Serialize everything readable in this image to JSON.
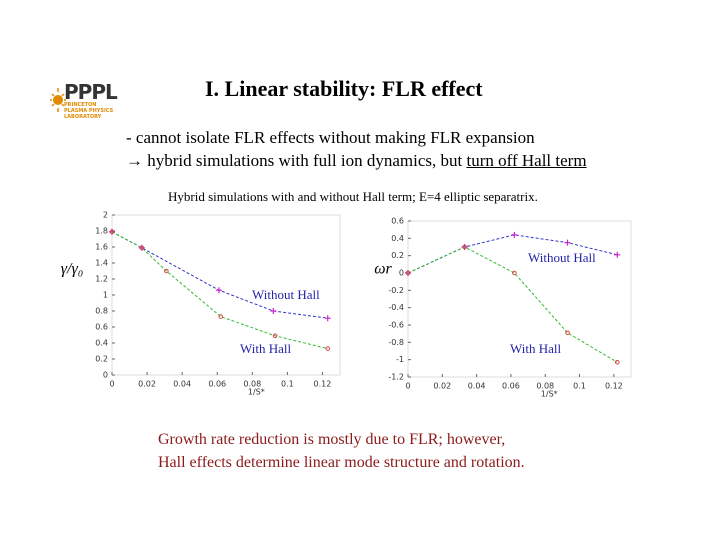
{
  "logo": {
    "text": "PPPL",
    "subtext": "PRINCETON PLASMA PHYSICS LABORATORY"
  },
  "title": "I.  Linear stability: FLR effect",
  "bullets": [
    "- cannot isolate FLR effects without making FLR expansion",
    "→  hybrid simulations with full ion dynamics, but ",
    "turn off Hall term"
  ],
  "caption": "Hybrid simulations with and without Hall term; E=4 elliptic separatrix.",
  "conclusion": [
    "Growth rate reduction is mostly due to FLR; however,",
    "Hall effects determine linear mode structure and rotation."
  ],
  "chart_data": [
    {
      "type": "line",
      "ylabel": "γ/γ₀",
      "xlabel": "1/S*",
      "xlim": [
        0,
        0.13
      ],
      "xticks": [
        0,
        0.02,
        0.04,
        0.06,
        0.08,
        0.1,
        0.12
      ],
      "ylim": [
        0,
        2
      ],
      "yticks": [
        0,
        0.2,
        0.4,
        0.6,
        0.8,
        1,
        1.2,
        1.4,
        1.6,
        1.8,
        2
      ],
      "annotations": [
        "Without Hall",
        "With Hall"
      ],
      "series": [
        {
          "name": "Without Hall",
          "color": "#3333cc",
          "x": [
            0,
            0.017,
            0.061,
            0.092,
            0.123
          ],
          "values": [
            1.79,
            1.59,
            1.06,
            0.8,
            0.71
          ]
        },
        {
          "name": "With Hall",
          "color": "#33bb33",
          "x": [
            0,
            0.017,
            0.031,
            0.062,
            0.093,
            0.123
          ],
          "values": [
            1.79,
            1.59,
            1.3,
            0.73,
            0.49,
            0.33
          ]
        }
      ]
    },
    {
      "type": "line",
      "ylabel": "ωr",
      "xlabel": "1/S*",
      "xlim": [
        0,
        0.13
      ],
      "xticks": [
        0,
        0.02,
        0.04,
        0.06,
        0.08,
        0.1,
        0.12
      ],
      "ylim": [
        -1.2,
        0.6
      ],
      "yticks": [
        -1.2,
        -1,
        -0.8,
        -0.6,
        -0.4,
        -0.2,
        0,
        0.2,
        0.4,
        0.6
      ],
      "annotations": [
        "Without Hall",
        "With Hall"
      ],
      "series": [
        {
          "name": "Without Hall",
          "color": "#3333cc",
          "x": [
            0,
            0.033,
            0.062,
            0.093,
            0.122
          ],
          "values": [
            0,
            0.3,
            0.44,
            0.35,
            0.21
          ]
        },
        {
          "name": "With Hall",
          "color": "#33bb33",
          "x": [
            0,
            0.033,
            0.062,
            0.093,
            0.122
          ],
          "values": [
            0,
            0.3,
            0,
            -0.69,
            -1.03
          ]
        }
      ]
    }
  ]
}
